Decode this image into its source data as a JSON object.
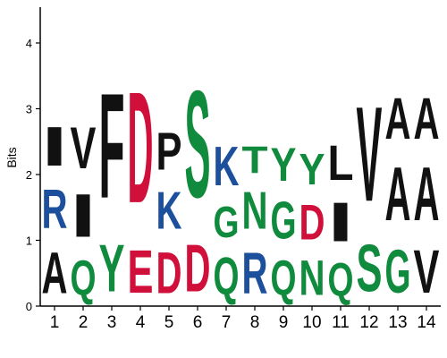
{
  "chart_data": {
    "type": "sequence-logo",
    "ylabel": "Bits",
    "ylim": [
      0,
      4.5
    ],
    "yticks": [
      "0",
      "1",
      "2",
      "3",
      "4"
    ],
    "positions": [
      "1",
      "2",
      "3",
      "4",
      "5",
      "6",
      "7",
      "8",
      "9",
      "10",
      "11",
      "12",
      "13",
      "14"
    ],
    "colors": {
      "black": "#111111",
      "blue": "#1c4f9c",
      "red": "#d0103a",
      "green": "#108a3c"
    },
    "columns": [
      [
        {
          "letter": "A",
          "height": 1.0,
          "color": "black"
        },
        {
          "letter": "R",
          "height": 0.95,
          "color": "blue"
        },
        {
          "letter": "I",
          "height": 0.95,
          "color": "black"
        }
      ],
      [
        {
          "letter": "Q",
          "height": 0.85,
          "color": "green"
        },
        {
          "letter": "I",
          "height": 1.05,
          "color": "black"
        },
        {
          "letter": "V",
          "height": 1.0,
          "color": "black"
        }
      ],
      [
        {
          "letter": "Y",
          "height": 1.15,
          "color": "green"
        },
        {
          "letter": "F",
          "height": 2.55,
          "color": "black"
        }
      ],
      [
        {
          "letter": "E",
          "height": 1.05,
          "color": "red"
        },
        {
          "letter": "D",
          "height": 2.7,
          "color": "red"
        }
      ],
      [
        {
          "letter": "D",
          "height": 1.0,
          "color": "red"
        },
        {
          "letter": "K",
          "height": 0.9,
          "color": "blue"
        },
        {
          "letter": "P",
          "height": 0.9,
          "color": "black"
        }
      ],
      [
        {
          "letter": "D",
          "height": 1.15,
          "color": "red"
        },
        {
          "letter": "S",
          "height": 2.6,
          "color": "green"
        }
      ],
      [
        {
          "letter": "Q",
          "height": 0.9,
          "color": "green"
        },
        {
          "letter": "G",
          "height": 0.75,
          "color": "green"
        },
        {
          "letter": "K",
          "height": 0.95,
          "color": "blue"
        }
      ],
      [
        {
          "letter": "R",
          "height": 1.0,
          "color": "blue"
        },
        {
          "letter": "N",
          "height": 0.9,
          "color": "green"
        },
        {
          "letter": "T",
          "height": 0.65,
          "color": "green"
        }
      ],
      [
        {
          "letter": "Q",
          "height": 0.85,
          "color": "green"
        },
        {
          "letter": "G",
          "height": 0.9,
          "color": "green"
        },
        {
          "letter": "Y",
          "height": 0.8,
          "color": "green"
        }
      ],
      [
        {
          "letter": "N",
          "height": 0.85,
          "color": "green"
        },
        {
          "letter": "D",
          "height": 0.85,
          "color": "red"
        },
        {
          "letter": "Y",
          "height": 0.75,
          "color": "green"
        }
      ],
      [
        {
          "letter": "Q",
          "height": 0.8,
          "color": "green"
        },
        {
          "letter": "I",
          "height": 0.95,
          "color": "black"
        },
        {
          "letter": "L",
          "height": 0.85,
          "color": "black"
        }
      ],
      [
        {
          "letter": "S",
          "height": 1.15,
          "color": "green"
        },
        {
          "letter": "V",
          "height": 2.3,
          "color": "black"
        }
      ],
      [
        {
          "letter": "G",
          "height": 1.05,
          "color": "green"
        },
        {
          "letter": "A",
          "height": 1.3,
          "color": "black"
        },
        {
          "letter": "A",
          "height": 1.0,
          "color": "black"
        }
      ],
      [
        {
          "letter": "V",
          "height": 1.05,
          "color": "black"
        },
        {
          "letter": "A",
          "height": 1.3,
          "color": "black"
        },
        {
          "letter": "A",
          "height": 1.0,
          "color": "black"
        }
      ]
    ]
  }
}
